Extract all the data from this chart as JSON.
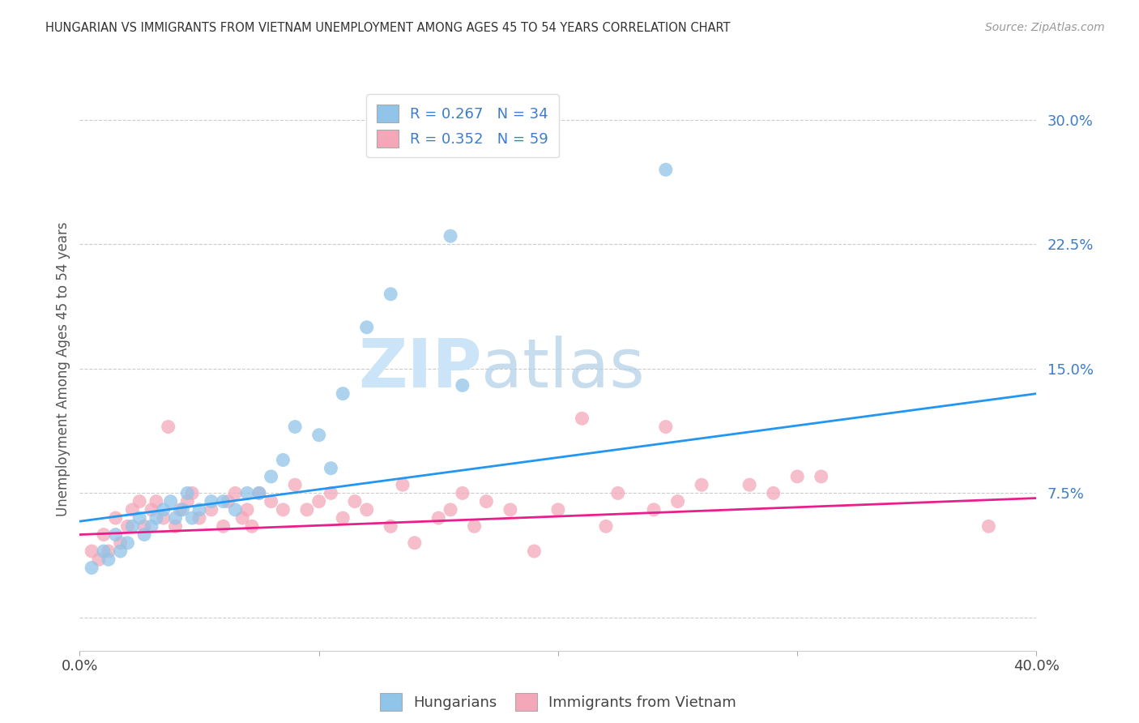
{
  "title": "HUNGARIAN VS IMMIGRANTS FROM VIETNAM UNEMPLOYMENT AMONG AGES 45 TO 54 YEARS CORRELATION CHART",
  "source": "Source: ZipAtlas.com",
  "ylabel": "Unemployment Among Ages 45 to 54 years",
  "xlim": [
    0.0,
    0.4
  ],
  "ylim": [
    -0.02,
    0.32
  ],
  "yticks": [
    0.0,
    0.075,
    0.15,
    0.225,
    0.3
  ],
  "ytick_labels": [
    "",
    "7.5%",
    "15.0%",
    "22.5%",
    "30.0%"
  ],
  "xticks": [
    0.0,
    0.1,
    0.2,
    0.3,
    0.4
  ],
  "legend_entry1": "R = 0.267   N = 34",
  "legend_entry2": "R = 0.352   N = 59",
  "legend_label1": "Hungarians",
  "legend_label2": "Immigrants from Vietnam",
  "blue_color": "#90c4e8",
  "pink_color": "#f4a7b9",
  "line_blue": "#2196f3",
  "line_pink": "#e91e8c",
  "tick_label_color": "#3d7cc9",
  "watermark_color": "#cce4f7",
  "blue_scatter_x": [
    0.005,
    0.01,
    0.012,
    0.015,
    0.017,
    0.02,
    0.022,
    0.025,
    0.027,
    0.03,
    0.032,
    0.035,
    0.038,
    0.04,
    0.043,
    0.045,
    0.047,
    0.05,
    0.055,
    0.06,
    0.065,
    0.07,
    0.075,
    0.08,
    0.085,
    0.09,
    0.1,
    0.105,
    0.11,
    0.12,
    0.13,
    0.155,
    0.16,
    0.245
  ],
  "blue_scatter_y": [
    0.03,
    0.04,
    0.035,
    0.05,
    0.04,
    0.045,
    0.055,
    0.06,
    0.05,
    0.055,
    0.06,
    0.065,
    0.07,
    0.06,
    0.065,
    0.075,
    0.06,
    0.065,
    0.07,
    0.07,
    0.065,
    0.075,
    0.075,
    0.085,
    0.095,
    0.115,
    0.11,
    0.09,
    0.135,
    0.175,
    0.195,
    0.23,
    0.14,
    0.27
  ],
  "pink_scatter_x": [
    0.005,
    0.008,
    0.01,
    0.012,
    0.015,
    0.017,
    0.02,
    0.022,
    0.025,
    0.027,
    0.03,
    0.032,
    0.035,
    0.037,
    0.04,
    0.042,
    0.045,
    0.047,
    0.05,
    0.055,
    0.06,
    0.062,
    0.065,
    0.068,
    0.07,
    0.072,
    0.075,
    0.08,
    0.085,
    0.09,
    0.095,
    0.1,
    0.105,
    0.11,
    0.115,
    0.12,
    0.13,
    0.135,
    0.14,
    0.15,
    0.155,
    0.16,
    0.165,
    0.17,
    0.18,
    0.19,
    0.2,
    0.21,
    0.22,
    0.225,
    0.24,
    0.245,
    0.25,
    0.26,
    0.28,
    0.29,
    0.3,
    0.31,
    0.38
  ],
  "pink_scatter_y": [
    0.04,
    0.035,
    0.05,
    0.04,
    0.06,
    0.045,
    0.055,
    0.065,
    0.07,
    0.055,
    0.065,
    0.07,
    0.06,
    0.115,
    0.055,
    0.065,
    0.07,
    0.075,
    0.06,
    0.065,
    0.055,
    0.07,
    0.075,
    0.06,
    0.065,
    0.055,
    0.075,
    0.07,
    0.065,
    0.08,
    0.065,
    0.07,
    0.075,
    0.06,
    0.07,
    0.065,
    0.055,
    0.08,
    0.045,
    0.06,
    0.065,
    0.075,
    0.055,
    0.07,
    0.065,
    0.04,
    0.065,
    0.12,
    0.055,
    0.075,
    0.065,
    0.115,
    0.07,
    0.08,
    0.08,
    0.075,
    0.085,
    0.085,
    0.055
  ],
  "blue_line_x": [
    0.0,
    0.4
  ],
  "blue_line_y": [
    0.058,
    0.135
  ],
  "pink_line_x": [
    0.0,
    0.4
  ],
  "pink_line_y": [
    0.05,
    0.072
  ],
  "grid_color": "#cccccc",
  "bg_color": "#ffffff"
}
